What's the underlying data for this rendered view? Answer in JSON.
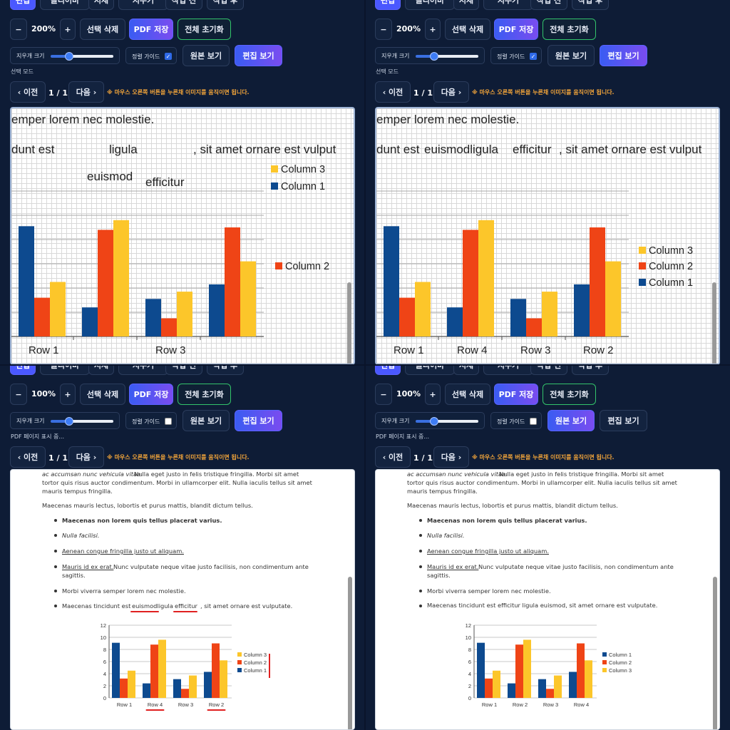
{
  "colors": {
    "col1": "#0d4a8f",
    "col2": "#ef4416",
    "col3": "#fcc62a",
    "accent": "#4a58ff"
  },
  "top_row_labels": [
    "편집",
    "클리어바",
    "서체",
    "지우기",
    "작업 전",
    "작업 후"
  ],
  "toolbar": {
    "minus": "−",
    "plus": "+",
    "delete": "선택 삭제",
    "pdf": "PDF 저장",
    "reset": "전체 초기화",
    "eraser_label": "지우개 크기",
    "guide_label": "정렬 가이드",
    "check": "✓",
    "original_view": "원본 보기",
    "edit_view": "편집 보기",
    "prev": "‹ 이전",
    "next": "다음 ›",
    "hint": "※ 마우스 오른쪽 버튼을 누른채 이미지를 움직이면 됩니다."
  },
  "panels": [
    {
      "zoom": "200%",
      "mode": "선택 모드",
      "page": "1 / 1",
      "eraser": 0.3,
      "guide": true,
      "view": "edit"
    },
    {
      "zoom": "200%",
      "mode": "선택 모드",
      "page": "1 / 1",
      "eraser": 0.3,
      "guide": true,
      "view": "edit"
    },
    {
      "zoom": "100%",
      "mode": "PDF 페이지 표시 중...",
      "page": "1 / 1",
      "eraser": 0.3,
      "guide": false,
      "view": "edit"
    },
    {
      "zoom": "100%",
      "mode": "PDF 페이지 표시 중...",
      "page": "1 / 1",
      "eraser": 0.3,
      "guide": false,
      "view": "original"
    }
  ],
  "zoomed": {
    "p0": {
      "line1": "emper lorem nec molestie.",
      "line2_a": "dunt est",
      "line2_b": "ligula",
      "line2_c": ", sit amet ornare est vulput",
      "float_1": "euismod",
      "float_2": "efficitur",
      "legend": [
        "Column 3",
        "Column 1",
        "Column 2"
      ],
      "cats": [
        "Row 1",
        "Row 3"
      ]
    },
    "p1": {
      "line1": "emper lorem nec molestie.",
      "line2_a": "dunt est",
      "line2_b": "euismodligula",
      "line2_c": "efficitur",
      "line2_d": ", sit amet ornare est vulput",
      "legend": [
        "Column 3",
        "Column 2",
        "Column 1"
      ],
      "cats": [
        "Row 1",
        "Row 4",
        "Row 3",
        "Row 2"
      ]
    }
  },
  "doc": {
    "p1": "ac accumsan nunc vehicula vitae.",
    "p1b": " Nulla eget justo in felis tristique fringilla. Morbi sit amet",
    "p1c": "tortor quis risus auctor condimentum. Morbi in ullamcorper elit. Nulla iaculis tellus sit amet",
    "p1d": "mauris tempus fringilla.",
    "p2": "Maecenas mauris lectus, lobortis et purus mattis, blandit dictum tellus.",
    "b1": "Maecenas non lorem quis tellus placerat varius.",
    "b2": "Nulla facilisi.",
    "b3": "Aenean congue fringilla justo ut aliquam.",
    "b4a": "Mauris id ex erat.",
    "b4b": " Nunc vulputate neque vitae justo facilisis, non condimentum ante",
    "b4c": "sagittis.",
    "b5": "Morbi viverra semper lorem nec molestie.",
    "b6_edit_a": "Maecenas tincidunt est ",
    "b6_edit_b": "euismodligula",
    "b6_edit_c": "efficitur",
    "b6_edit_d": ", sit amet ornare est vulputate.",
    "b6_orig": "Maecenas tincidunt est efficitur ligula euismod, sit amet ornare est vulputate."
  },
  "chart_data": [
    {
      "type": "bar",
      "categories": [
        "Row 1",
        "Row 4",
        "Row 3",
        "Row 2"
      ],
      "series": [
        {
          "name": "Column 1",
          "values": [
            9.1,
            2.4,
            3.1,
            4.3
          ]
        },
        {
          "name": "Column 2",
          "values": [
            3.2,
            8.8,
            1.5,
            9.0
          ]
        },
        {
          "name": "Column 3",
          "values": [
            4.5,
            9.6,
            3.7,
            6.2
          ]
        }
      ],
      "yticks": [
        "0",
        "2",
        "4",
        "6",
        "8",
        "10",
        "12"
      ],
      "ylim": [
        0,
        12
      ],
      "legend": [
        "Column 3",
        "Column 2",
        "Column 1"
      ]
    },
    {
      "type": "bar",
      "categories": [
        "Row 1",
        "Row 2",
        "Row 3",
        "Row 4"
      ],
      "series": [
        {
          "name": "Column 1",
          "values": [
            9.1,
            2.4,
            3.1,
            4.3
          ]
        },
        {
          "name": "Column 2",
          "values": [
            3.2,
            8.8,
            1.5,
            9.0
          ]
        },
        {
          "name": "Column 3",
          "values": [
            4.5,
            9.6,
            3.7,
            6.2
          ]
        }
      ],
      "yticks": [
        "0",
        "2",
        "4",
        "6",
        "8",
        "10",
        "12"
      ],
      "ylim": [
        0,
        12
      ],
      "legend": [
        "Column 1",
        "Column 2",
        "Column 3"
      ]
    }
  ]
}
